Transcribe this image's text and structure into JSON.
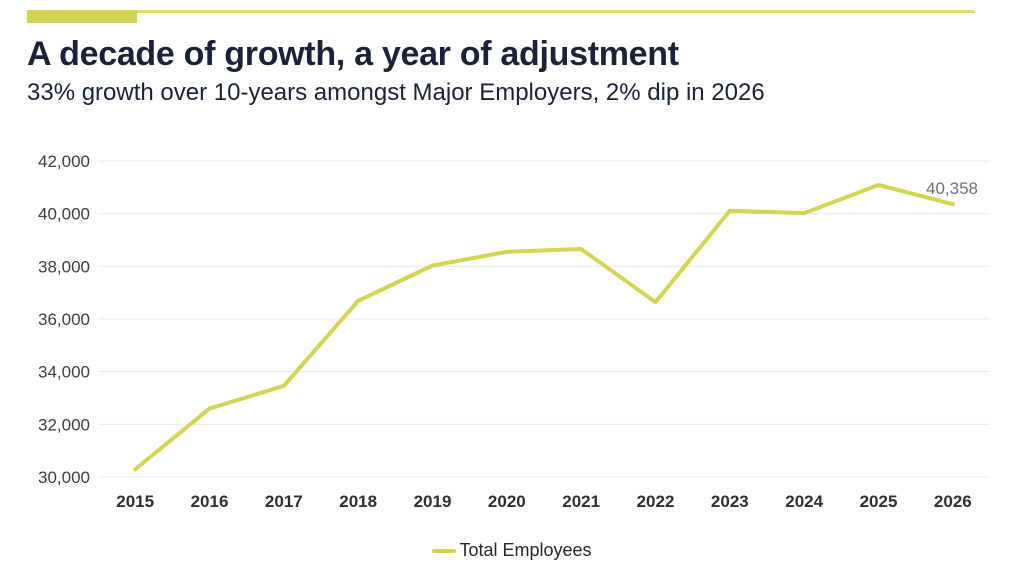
{
  "header": {
    "title": "A decade of growth, a year of adjustment",
    "subtitle": "33% growth over 10-years amongst Major Employers, 2% dip in 2026"
  },
  "chart_data": {
    "type": "line",
    "title": "A decade of growth, a year of adjustment",
    "subtitle": "33% growth over 10-years amongst Major Employers, 2% dip in 2026",
    "categories": [
      "2015",
      "2016",
      "2017",
      "2018",
      "2019",
      "2020",
      "2021",
      "2022",
      "2023",
      "2024",
      "2025",
      "2026"
    ],
    "series": [
      {
        "name": "Total Employees",
        "values": [
          30290,
          32600,
          33460,
          36690,
          38030,
          38550,
          38660,
          36640,
          40110,
          40020,
          41090,
          40358
        ]
      }
    ],
    "xlabel": "",
    "ylabel": "",
    "ylim": [
      30000,
      42000
    ],
    "ytick_step": 2000,
    "ytick_labels": [
      "30,000",
      "32,000",
      "34,000",
      "36,000",
      "38,000",
      "40,000",
      "42,000"
    ],
    "grid": true,
    "legend": {
      "label": "Total Employees",
      "position": "bottom"
    },
    "end_label": "40,358"
  },
  "colors": {
    "accent": "#d2d452",
    "title_text": "#1a2238",
    "axis_text": "#3e3e3e",
    "x_axis_text": "#303030",
    "gridline": "#e8e8e8",
    "data_label": "#707070",
    "legend_text": "#272727",
    "background": "#ffffff"
  }
}
